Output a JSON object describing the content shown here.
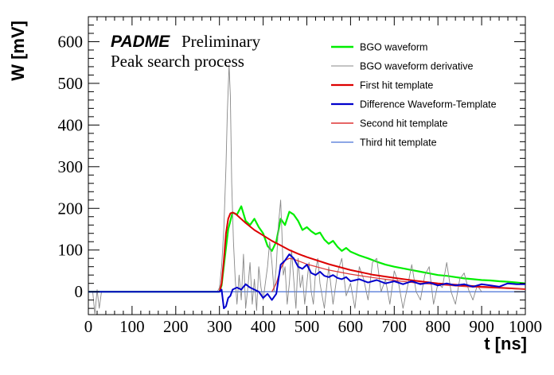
{
  "annotations": {
    "brand": "PADME",
    "status": "Preliminary",
    "caption": "Peak search process"
  },
  "chart_data": {
    "type": "line",
    "title": "",
    "xlabel": "t [ns]",
    "ylabel": "W [mV]",
    "xlim": [
      0,
      1000
    ],
    "ylim": [
      -55,
      660
    ],
    "x_ticks": [
      0,
      100,
      200,
      300,
      400,
      500,
      600,
      700,
      800,
      900,
      1000
    ],
    "y_ticks": [
      0,
      100,
      200,
      300,
      400,
      500,
      600
    ],
    "grid": false,
    "legend_position": "top-right",
    "series": [
      {
        "name": "BGO waveform",
        "color": "#00ee00",
        "x": [
          0,
          100,
          200,
          300,
          305,
          312,
          320,
          330,
          340,
          350,
          360,
          370,
          380,
          390,
          400,
          410,
          420,
          430,
          440,
          450,
          460,
          470,
          480,
          490,
          500,
          510,
          520,
          530,
          540,
          550,
          560,
          570,
          580,
          590,
          600,
          620,
          640,
          660,
          680,
          700,
          720,
          740,
          760,
          780,
          800,
          820,
          840,
          860,
          880,
          900,
          920,
          940,
          960,
          980,
          1000
        ],
        "y": [
          0,
          0,
          0,
          0,
          15,
          80,
          150,
          190,
          185,
          205,
          170,
          160,
          175,
          155,
          140,
          110,
          98,
          120,
          175,
          160,
          192,
          185,
          170,
          148,
          155,
          145,
          138,
          142,
          125,
          115,
          122,
          108,
          98,
          105,
          96,
          87,
          80,
          72,
          65,
          60,
          56,
          52,
          48,
          44,
          40,
          38,
          35,
          32,
          30,
          28,
          27,
          25,
          24,
          22,
          20
        ]
      },
      {
        "name": "BGO waveform derivative",
        "color": "#888888",
        "x": [
          0,
          10,
          15,
          20,
          25,
          30,
          50,
          100,
          150,
          200,
          250,
          295,
          300,
          305,
          310,
          315,
          318,
          322,
          325,
          328,
          332,
          336,
          340,
          345,
          350,
          355,
          360,
          365,
          370,
          375,
          380,
          385,
          390,
          395,
          400,
          405,
          410,
          415,
          420,
          425,
          430,
          435,
          440,
          443,
          446,
          450,
          455,
          460,
          465,
          470,
          475,
          480,
          485,
          490,
          495,
          500,
          505,
          510,
          515,
          520,
          525,
          530,
          540,
          550,
          560,
          570,
          580,
          590,
          600,
          610,
          620,
          630,
          640,
          650,
          660,
          670,
          680,
          690,
          700,
          710,
          720,
          730,
          740,
          750,
          760,
          770,
          780,
          790,
          800,
          810,
          820,
          830,
          840,
          850,
          860,
          870,
          880,
          890,
          900
        ],
        "y": [
          0,
          0,
          -55,
          5,
          -40,
          0,
          0,
          0,
          0,
          0,
          0,
          0,
          10,
          60,
          150,
          300,
          430,
          545,
          470,
          260,
          120,
          30,
          -30,
          40,
          -20,
          90,
          -40,
          10,
          70,
          -30,
          30,
          -45,
          60,
          10,
          -20,
          20,
          60,
          120,
          70,
          0,
          60,
          160,
          220,
          140,
          40,
          60,
          -30,
          20,
          100,
          30,
          -40,
          80,
          10,
          40,
          -30,
          20,
          70,
          0,
          -30,
          50,
          80,
          20,
          -40,
          60,
          -30,
          45,
          80,
          -10,
          20,
          -40,
          60,
          30,
          -20,
          70,
          80,
          0,
          30,
          -30,
          50,
          20,
          -40,
          10,
          65,
          0,
          -20,
          40,
          60,
          -30,
          20,
          10,
          70,
          0,
          -30,
          30,
          45,
          5,
          -20,
          15,
          0
        ]
      },
      {
        "name": "First hit template",
        "color": "#dd0000",
        "x": [
          300,
          305,
          310,
          315,
          320,
          325,
          330,
          335,
          340,
          360,
          380,
          400,
          420,
          440,
          460,
          480,
          500,
          550,
          600,
          650,
          700,
          750,
          800,
          850,
          900,
          950,
          1000
        ],
        "y": [
          0,
          20,
          75,
          140,
          175,
          188,
          190,
          188,
          184,
          165,
          148,
          135,
          122,
          111,
          100,
          91,
          83,
          66,
          52,
          41,
          33,
          26,
          20,
          16,
          12,
          9,
          6
        ]
      },
      {
        "name": "Difference Waveform-Template",
        "color": "#0000cc",
        "x": [
          0,
          100,
          200,
          290,
          300,
          305,
          310,
          315,
          320,
          325,
          330,
          340,
          350,
          360,
          370,
          380,
          390,
          400,
          410,
          420,
          430,
          440,
          450,
          460,
          470,
          480,
          490,
          500,
          510,
          520,
          530,
          540,
          550,
          560,
          570,
          580,
          590,
          600,
          620,
          640,
          660,
          680,
          700,
          720,
          740,
          760,
          780,
          800,
          820,
          840,
          860,
          880,
          900,
          920,
          940,
          960,
          980,
          1000
        ],
        "y": [
          0,
          0,
          0,
          0,
          0,
          5,
          -40,
          -35,
          -15,
          -10,
          5,
          10,
          5,
          18,
          10,
          5,
          0,
          -15,
          -5,
          -20,
          -5,
          65,
          75,
          90,
          80,
          60,
          55,
          65,
          45,
          40,
          48,
          38,
          35,
          40,
          33,
          30,
          35,
          25,
          30,
          22,
          28,
          20,
          25,
          18,
          25,
          18,
          22,
          15,
          20,
          15,
          18,
          12,
          18,
          15,
          12,
          20,
          18,
          18
        ]
      },
      {
        "name": "Second hit template",
        "color": "#dd3333",
        "x": [
          420,
          430,
          440,
          450,
          460,
          470,
          480,
          500,
          550,
          600,
          650,
          700,
          750,
          800,
          850,
          900,
          950,
          1000
        ],
        "y": [
          0,
          20,
          55,
          75,
          80,
          78,
          74,
          66,
          52,
          42,
          34,
          27,
          21,
          17,
          13,
          10,
          8,
          6
        ]
      },
      {
        "name": "Third hit template",
        "color": "#6688dd",
        "x": [
          0,
          1000
        ],
        "y": [
          0,
          0
        ]
      }
    ]
  }
}
